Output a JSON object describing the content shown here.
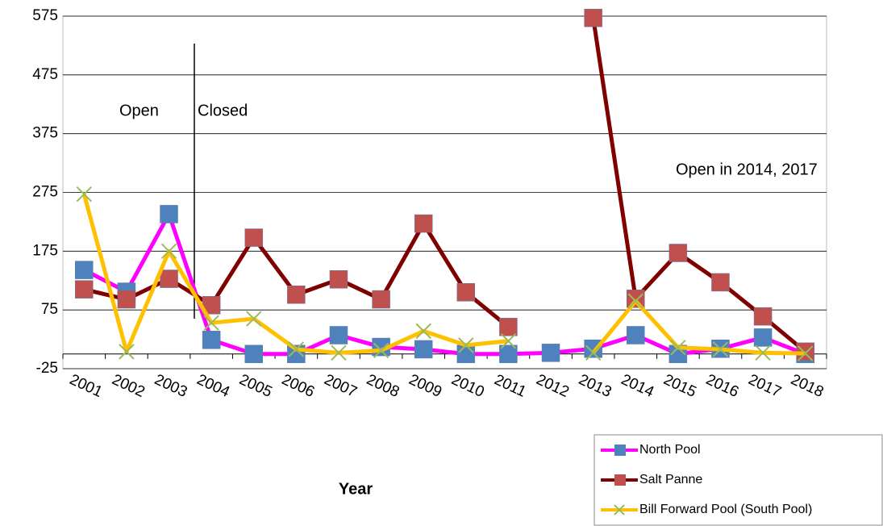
{
  "chart_data": {
    "type": "line",
    "x_label": "Year",
    "categories": [
      "2001",
      "2002",
      "2003",
      "2004",
      "2005",
      "2006",
      "2007",
      "2008",
      "2009",
      "2010",
      "2011",
      "2012",
      "2013",
      "2014",
      "2015",
      "2016",
      "2017",
      "2018"
    ],
    "ylim": [
      -25,
      575
    ],
    "yticks": [
      -25,
      75,
      175,
      275,
      375,
      475,
      575
    ],
    "grid": true,
    "legend": "bottom-right",
    "annotations": [
      "Open",
      "Closed",
      "Open in 2014, 2017"
    ],
    "series": [
      {
        "name": "North Pool",
        "color": "#ff00ff",
        "marker": "square",
        "marker_color": "#4f81bd",
        "values": [
          143,
          106,
          238,
          24,
          0,
          0,
          32,
          12,
          8,
          0,
          0,
          2,
          9,
          32,
          0,
          9,
          28,
          0
        ]
      },
      {
        "name": "Salt Panne",
        "color": "#800000",
        "marker": "square",
        "marker_color": "#c0504d",
        "values": [
          110,
          93,
          128,
          83,
          198,
          101,
          127,
          93,
          222,
          105,
          46,
          null,
          572,
          94,
          172,
          122,
          64,
          4
        ]
      },
      {
        "name": "Bill Forward Pool (South Pool)",
        "color": "#ffc000",
        "marker": "x",
        "marker_color": "#9bbb59",
        "values": [
          272,
          4,
          175,
          53,
          60,
          8,
          2,
          6,
          39,
          15,
          22,
          null,
          2,
          90,
          11,
          8,
          2,
          1
        ]
      }
    ]
  }
}
